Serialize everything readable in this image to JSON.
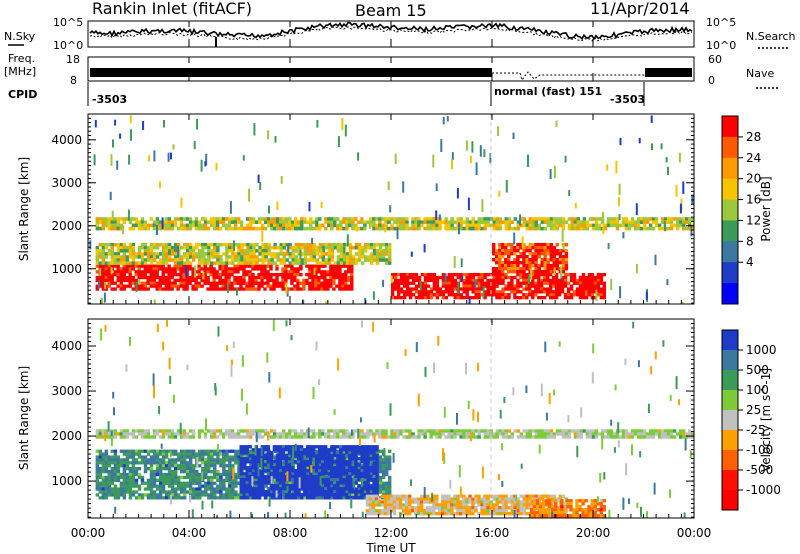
{
  "header": {
    "station": "Rankin Inlet (fitACF)",
    "beam": "Beam 15",
    "date": "11/Apr/2014"
  },
  "status_panels": {
    "nsky_label": "N.Sky",
    "nsky_ticks": [
      "10^5",
      "10^0"
    ],
    "nsearch_label": "N.Search",
    "nsearch_ticks": [
      "10^5",
      "10^0"
    ],
    "freq_label": "Freq.",
    "freq_unit": "[MHz]",
    "freq_ticks": [
      "18",
      "8"
    ],
    "nave_label": "Nave",
    "nave_ticks": [
      "60",
      "0"
    ],
    "cpid_label": "CPID",
    "cpid_left": "-3503",
    "cpid_mid": "normal (fast) 151",
    "cpid_right": "-3503"
  },
  "axes": {
    "ylabel": "Slant Range [km]",
    "xlabel": "Time UT",
    "xticks": [
      "00:00",
      "04:00",
      "08:00",
      "12:00",
      "16:00",
      "20:00",
      "00:00"
    ],
    "yticks": [
      "1000",
      "2000",
      "3000",
      "4000"
    ]
  },
  "chart_data": [
    {
      "type": "heatmap",
      "name": "power",
      "x_range_hours": [
        0,
        24
      ],
      "y_range_km": [
        180,
        4600
      ],
      "colorbar_label": "Power [dB]",
      "colorbar_ticks": [
        "28",
        "24",
        "20",
        "16",
        "12",
        "8",
        "4"
      ],
      "colorbar_colors": [
        "#ff0000",
        "#ff5a00",
        "#ff9900",
        "#f5c400",
        "#9bc83c",
        "#3c9b5a",
        "#3c78a0",
        "#1e3cc8",
        "#0000ff"
      ],
      "features": [
        {
          "t_start": 0.3,
          "t_end": 10.5,
          "r_low": 500,
          "r_high": 1100,
          "level": 28
        },
        {
          "t_start": 0.3,
          "t_end": 12.0,
          "r_low": 1100,
          "r_high": 1600,
          "level": 14
        },
        {
          "t_start": 0.3,
          "t_end": 24.0,
          "r_low": 1900,
          "r_high": 2200,
          "level": 14
        },
        {
          "t_start": 12.0,
          "t_end": 20.5,
          "r_low": 300,
          "r_high": 900,
          "level": 28
        },
        {
          "t_start": 16.0,
          "t_end": 19.0,
          "r_low": 900,
          "r_high": 1600,
          "level": 24
        }
      ]
    },
    {
      "type": "heatmap",
      "name": "velocity",
      "x_range_hours": [
        0,
        24
      ],
      "y_range_km": [
        180,
        4600
      ],
      "colorbar_label": "Velocity [m s^-1]",
      "colorbar_ticks": [
        "1000",
        "500",
        "100",
        "25",
        "-25",
        "-100",
        "-500",
        "-1000"
      ],
      "colorbar_colors": [
        "#1e3cc8",
        "#3c78a0",
        "#3c9b5a",
        "#7ccc3a",
        "#c0c0c0",
        "#ffa000",
        "#ff6000",
        "#ff1000",
        "#ff0000"
      ],
      "features": [
        {
          "t_start": 0.3,
          "t_end": 12.0,
          "r_low": 600,
          "r_high": 1700,
          "level": 100
        },
        {
          "t_start": 6.0,
          "t_end": 11.5,
          "r_low": 600,
          "r_high": 1800,
          "level": 1000
        },
        {
          "t_start": 0.3,
          "t_end": 24.0,
          "r_low": 1950,
          "r_high": 2150,
          "level": 0
        },
        {
          "t_start": 11.0,
          "t_end": 19.0,
          "r_low": 250,
          "r_high": 700,
          "level": -100
        },
        {
          "t_start": 17.5,
          "t_end": 20.5,
          "r_low": 200,
          "r_high": 600,
          "level": -500
        }
      ]
    }
  ]
}
